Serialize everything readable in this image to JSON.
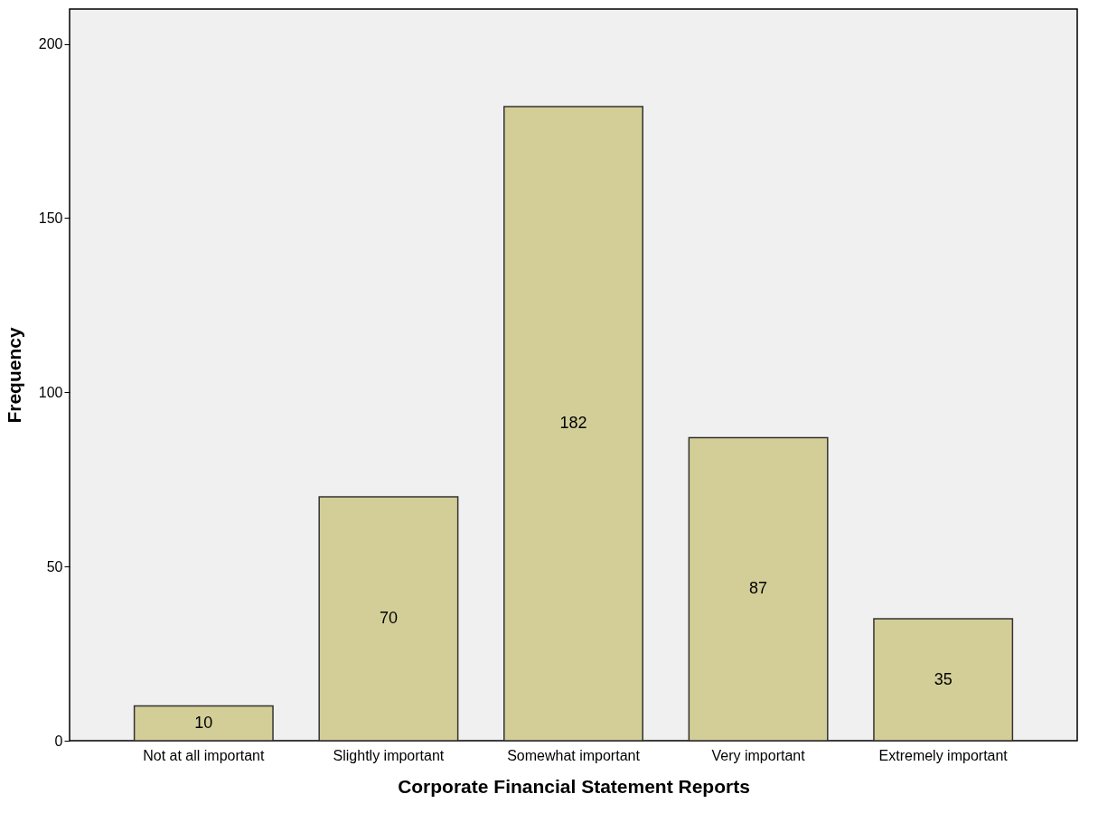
{
  "chart_data": {
    "type": "bar",
    "xlabel": "Corporate Financial Statement Reports",
    "ylabel": "Frequency",
    "categories": [
      "Not at all important",
      "Slightly important",
      "Somewhat important",
      "Very important",
      "Extremely important"
    ],
    "values": [
      10,
      70,
      182,
      87,
      35
    ],
    "color": "#d3ce97",
    "ylim": [
      0,
      210
    ],
    "yticks": [
      0,
      50,
      100,
      150,
      200
    ],
    "grid": false,
    "data_labels": true
  }
}
